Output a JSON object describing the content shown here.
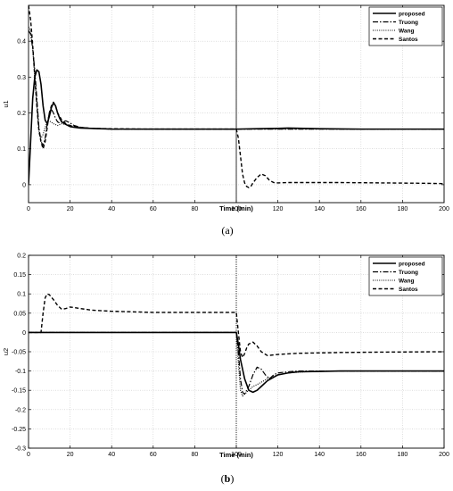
{
  "chart_data": [
    {
      "type": "line",
      "caption_prefix": "(",
      "caption_letter": "a",
      "caption_suffix": ")",
      "xlabel": "Time (min)",
      "ylabel": "u1",
      "xlim": [
        0,
        200
      ],
      "ylim": [
        -0.05,
        0.5
      ],
      "xticks": [
        0,
        20,
        40,
        60,
        80,
        100,
        120,
        140,
        160,
        180,
        200
      ],
      "yticks": [
        0,
        0.1,
        0.2,
        0.3,
        0.4
      ],
      "ytick_labels": [
        "0",
        "0.1",
        "0.2",
        "0.3",
        "0.4"
      ],
      "grid": true,
      "legend_position": "top-right",
      "vline_x": 100,
      "series": [
        {
          "name": "proposed",
          "style": "solid",
          "x": [
            0,
            1,
            2,
            3,
            4,
            5,
            6,
            7,
            8,
            9,
            10,
            11,
            12,
            13,
            14,
            15,
            16,
            18,
            20,
            22,
            25,
            30,
            35,
            40,
            50,
            60,
            80,
            100,
            110,
            120,
            125,
            140,
            160,
            180,
            200
          ],
          "y": [
            0,
            0.12,
            0.24,
            0.3,
            0.32,
            0.315,
            0.28,
            0.22,
            0.18,
            0.17,
            0.19,
            0.215,
            0.228,
            0.22,
            0.2,
            0.185,
            0.175,
            0.168,
            0.162,
            0.16,
            0.158,
            0.157,
            0.156,
            0.155,
            0.155,
            0.155,
            0.155,
            0.155,
            0.156,
            0.157,
            0.158,
            0.156,
            0.155,
            0.155,
            0.155
          ]
        },
        {
          "name": "Truong",
          "style": "dashdot",
          "x": [
            0,
            1,
            2,
            3,
            4,
            5,
            6,
            7,
            8,
            9,
            10,
            11,
            12,
            13,
            14,
            15,
            16,
            18,
            20,
            22,
            25,
            30,
            35,
            40,
            50,
            60,
            80,
            100,
            200
          ],
          "y": [
            0.43,
            0.42,
            0.38,
            0.32,
            0.24,
            0.16,
            0.12,
            0.11,
            0.13,
            0.17,
            0.2,
            0.21,
            0.2,
            0.185,
            0.175,
            0.172,
            0.175,
            0.178,
            0.172,
            0.165,
            0.16,
            0.157,
            0.156,
            0.155,
            0.155,
            0.155,
            0.155,
            0.155,
            0.155
          ]
        },
        {
          "name": "Wang",
          "style": "dotted",
          "x": [
            0,
            1,
            2,
            3,
            4,
            5,
            6,
            7,
            8,
            9,
            10,
            12,
            14,
            16,
            18,
            20,
            25,
            30,
            40,
            50,
            60,
            80,
            100,
            200
          ],
          "y": [
            0.44,
            0.43,
            0.38,
            0.3,
            0.22,
            0.15,
            0.13,
            0.14,
            0.16,
            0.175,
            0.178,
            0.17,
            0.165,
            0.17,
            0.168,
            0.164,
            0.16,
            0.157,
            0.155,
            0.155,
            0.155,
            0.155,
            0.155,
            0.155
          ]
        },
        {
          "name": "Santos",
          "style": "dashed",
          "x": [
            0,
            1,
            2,
            3,
            4,
            5,
            6,
            7,
            8,
            9,
            10,
            11,
            12,
            13,
            14,
            15,
            16,
            18,
            20,
            25,
            30,
            40,
            60,
            80,
            100,
            101,
            102,
            103,
            104,
            105,
            106,
            107,
            108,
            110,
            112,
            114,
            116,
            118,
            120,
            125,
            130,
            150,
            170,
            190,
            200
          ],
          "y": [
            0.5,
            0.46,
            0.39,
            0.3,
            0.22,
            0.15,
            0.12,
            0.1,
            0.12,
            0.16,
            0.2,
            0.22,
            0.23,
            0.22,
            0.2,
            0.19,
            0.18,
            0.17,
            0.165,
            0.16,
            0.157,
            0.156,
            0.155,
            0.155,
            0.155,
            0.13,
            0.08,
            0.03,
            0.005,
            -0.005,
            -0.008,
            -0.005,
            0.005,
            0.02,
            0.03,
            0.025,
            0.012,
            0.006,
            0.005,
            0.006,
            0.006,
            0.006,
            0.005,
            0.004,
            0.003
          ]
        }
      ]
    },
    {
      "type": "line",
      "caption_prefix": "(",
      "caption_letter": "b",
      "caption_suffix": ")",
      "xlabel": "Time (min)",
      "ylabel": "u2",
      "xlim": [
        0,
        200
      ],
      "ylim": [
        -0.3,
        0.2
      ],
      "xticks": [
        0,
        20,
        40,
        60,
        80,
        100,
        120,
        140,
        160,
        180,
        200
      ],
      "yticks": [
        -0.3,
        -0.25,
        -0.2,
        -0.15,
        -0.1,
        -0.05,
        0,
        0.05,
        0.1,
        0.15,
        0.2
      ],
      "ytick_labels": [
        "-0.3",
        "-0.25",
        "-0.2",
        "-0.15",
        "-0.1",
        "-0.05",
        "0",
        "0.05",
        "0.1",
        "0.15",
        "0.2"
      ],
      "grid": true,
      "legend_position": "top-right",
      "vline_x": 100,
      "series": [
        {
          "name": "proposed",
          "style": "solid",
          "x": [
            0,
            100,
            101,
            102,
            104,
            106,
            108,
            110,
            112,
            115,
            120,
            125,
            130,
            140,
            150,
            160,
            180,
            200
          ],
          "y": [
            0,
            0,
            -0.03,
            -0.07,
            -0.12,
            -0.15,
            -0.155,
            -0.15,
            -0.14,
            -0.125,
            -0.11,
            -0.105,
            -0.102,
            -0.101,
            -0.1,
            -0.1,
            -0.1,
            -0.1
          ]
        },
        {
          "name": "Truong",
          "style": "dashdot",
          "x": [
            0,
            100,
            101,
            102,
            103,
            104,
            106,
            108,
            110,
            112,
            114,
            116,
            118,
            120,
            125,
            130,
            140,
            150,
            160,
            180,
            200
          ],
          "y": [
            0,
            0,
            -0.05,
            -0.12,
            -0.155,
            -0.16,
            -0.14,
            -0.11,
            -0.09,
            -0.095,
            -0.11,
            -0.12,
            -0.11,
            -0.105,
            -0.102,
            -0.1,
            -0.1,
            -0.1,
            -0.1,
            -0.1,
            -0.1
          ]
        },
        {
          "name": "Wang",
          "style": "dotted",
          "x": [
            0,
            100,
            101,
            102,
            103,
            104,
            106,
            108,
            110,
            115,
            120,
            125,
            130,
            140,
            150,
            160,
            180,
            200
          ],
          "y": [
            0,
            0,
            -0.08,
            -0.15,
            -0.165,
            -0.16,
            -0.15,
            -0.14,
            -0.135,
            -0.12,
            -0.11,
            -0.105,
            -0.103,
            -0.1,
            -0.1,
            -0.1,
            -0.1,
            -0.1
          ]
        },
        {
          "name": "Santos",
          "style": "dashed",
          "x": [
            0,
            6,
            7,
            8,
            9,
            10,
            12,
            14,
            16,
            18,
            20,
            25,
            30,
            40,
            60,
            80,
            100,
            101,
            102,
            103,
            104,
            105,
            106,
            108,
            110,
            112,
            115,
            120,
            130,
            150,
            170,
            200
          ],
          "y": [
            0,
            0,
            0.05,
            0.09,
            0.1,
            0.098,
            0.085,
            0.07,
            0.06,
            0.062,
            0.066,
            0.062,
            0.058,
            0.055,
            0.052,
            0.052,
            0.052,
            0.0,
            -0.05,
            -0.065,
            -0.055,
            -0.04,
            -0.03,
            -0.025,
            -0.035,
            -0.05,
            -0.06,
            -0.057,
            -0.054,
            -0.052,
            -0.051,
            -0.05
          ]
        }
      ]
    }
  ]
}
